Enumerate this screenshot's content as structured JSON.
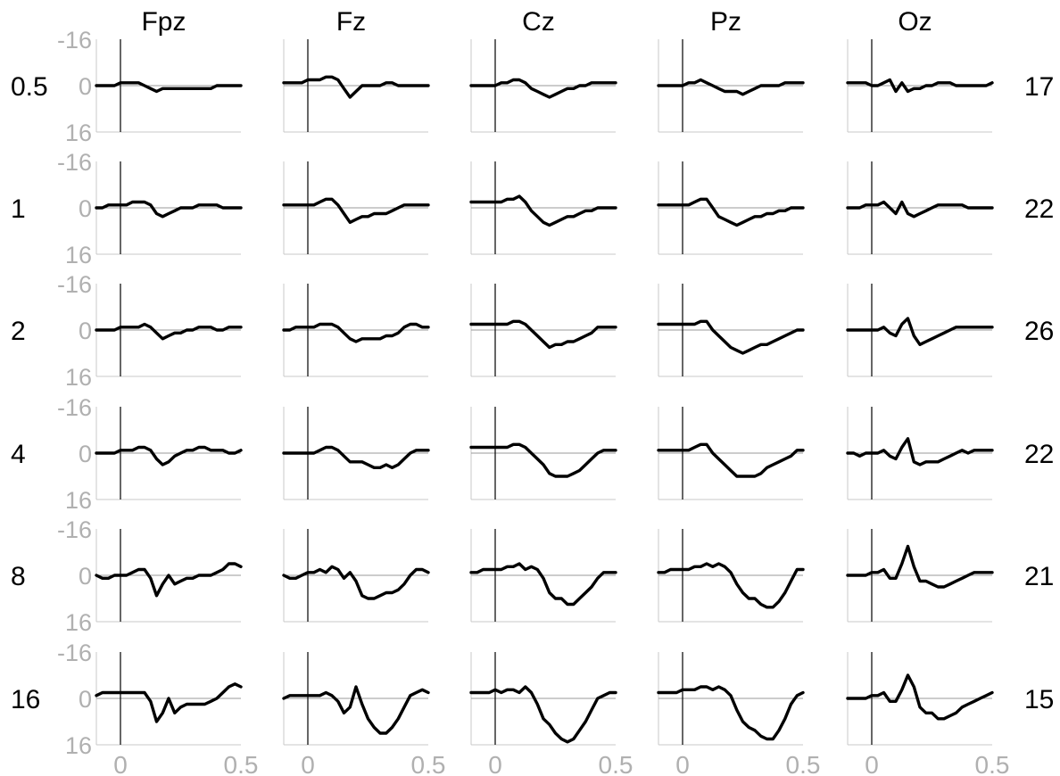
{
  "chart_data": {
    "type": "line",
    "columns": [
      "Fpz",
      "Fz",
      "Cz",
      "Pz",
      "Oz"
    ],
    "rows": [
      "0.5",
      "1",
      "2",
      "4",
      "8",
      "16"
    ],
    "right_labels": [
      "17",
      "22",
      "26",
      "22",
      "21",
      "15"
    ],
    "y_ticks": [
      "-16",
      "0",
      "16"
    ],
    "x_ticks": [
      "0",
      "0.5"
    ],
    "ylim": [
      -16,
      16
    ],
    "y_inverted": true,
    "xlim": [
      -0.1,
      0.5
    ],
    "x": [
      -0.1,
      -0.075,
      -0.05,
      -0.025,
      0,
      0.025,
      0.05,
      0.075,
      0.1,
      0.125,
      0.15,
      0.175,
      0.2,
      0.225,
      0.25,
      0.275,
      0.3,
      0.325,
      0.35,
      0.375,
      0.4,
      0.425,
      0.45,
      0.475,
      0.5
    ],
    "trace_color": "#000000",
    "panels": [
      [
        [
          0,
          0,
          0,
          0,
          -1,
          -1,
          -1,
          -1,
          0,
          1,
          2,
          1,
          1,
          1,
          1,
          1,
          1,
          1,
          1,
          1,
          0,
          0,
          0,
          0,
          0
        ],
        [
          0,
          0,
          -1,
          -1,
          -1,
          -1,
          -2,
          -2,
          -2,
          -1,
          2,
          3,
          2,
          1,
          0,
          0,
          0,
          -1,
          -1,
          -1,
          -1,
          0,
          0,
          0,
          0
        ],
        [
          0,
          0,
          0,
          0,
          -1,
          -1,
          -1,
          -1,
          -2,
          -1,
          1,
          3,
          2,
          1,
          1,
          0,
          0,
          -1,
          -1,
          -1,
          0,
          0,
          -1,
          -1,
          -1
        ],
        [
          0,
          0,
          0,
          0,
          -1,
          -1,
          -1,
          -2,
          -2,
          -1,
          2,
          4,
          3,
          1,
          0,
          -1,
          -1,
          -2,
          -2,
          -1,
          -1,
          -1,
          0,
          0,
          -1
        ],
        [
          0,
          1,
          1,
          0,
          0,
          0,
          -1,
          -2,
          -2,
          1,
          7,
          3,
          0,
          3,
          2,
          1,
          1,
          0,
          0,
          0,
          -1,
          -2,
          -4,
          -4,
          -3
        ],
        [
          -1,
          -2,
          -2,
          -2,
          -2,
          -2,
          -2,
          -2,
          -2,
          1,
          8,
          5,
          0,
          5,
          3,
          2,
          2,
          2,
          2,
          1,
          0,
          -2,
          -4,
          -5,
          -4
        ]
      ],
      [
        [
          -1,
          -1,
          -1,
          -1,
          -2,
          -2,
          -2,
          -3,
          -3,
          -2,
          1,
          4,
          2,
          0,
          0,
          0,
          0,
          -1,
          -1,
          0,
          0,
          0,
          0,
          0,
          0
        ],
        [
          -1,
          -1,
          -1,
          -1,
          -1,
          -1,
          -2,
          -3,
          -3,
          -1,
          2,
          5,
          4,
          3,
          3,
          2,
          2,
          2,
          1,
          0,
          -1,
          -1,
          -1,
          -1,
          -1
        ],
        [
          0,
          0,
          -1,
          -1,
          -1,
          -1,
          -2,
          -2,
          -2,
          -1,
          1,
          3,
          4,
          3,
          3,
          3,
          3,
          2,
          2,
          1,
          -1,
          -2,
          -2,
          -1,
          -1
        ],
        [
          0,
          0,
          0,
          0,
          0,
          0,
          -1,
          -2,
          -2,
          -1,
          1,
          3,
          3,
          3,
          4,
          5,
          5,
          4,
          5,
          4,
          2,
          0,
          -1,
          -1,
          -1
        ],
        [
          0,
          1,
          1,
          0,
          -1,
          -1,
          -2,
          -1,
          -3,
          -2,
          1,
          -1,
          2,
          7,
          8,
          8,
          7,
          6,
          6,
          5,
          3,
          0,
          -2,
          -2,
          -1
        ],
        [
          0,
          -1,
          -1,
          -1,
          -1,
          -1,
          -1,
          -2,
          -1,
          1,
          5,
          3,
          -4,
          2,
          7,
          10,
          12,
          12,
          10,
          7,
          3,
          -1,
          -2,
          -3,
          -2
        ]
      ],
      [
        [
          0,
          0,
          0,
          0,
          0,
          -1,
          -1,
          -2,
          -2,
          -1,
          1,
          2,
          3,
          4,
          3,
          2,
          1,
          1,
          0,
          0,
          -1,
          -1,
          -1,
          -1,
          -1
        ],
        [
          -2,
          -2,
          -2,
          -2,
          -2,
          -2,
          -3,
          -3,
          -4,
          -2,
          1,
          3,
          5,
          6,
          5,
          4,
          3,
          3,
          2,
          1,
          1,
          0,
          0,
          0,
          0
        ],
        [
          -2,
          -2,
          -2,
          -2,
          -2,
          -2,
          -2,
          -3,
          -3,
          -2,
          0,
          2,
          4,
          6,
          5,
          5,
          4,
          4,
          3,
          2,
          1,
          -1,
          -1,
          -1,
          -1
        ],
        [
          -2,
          -2,
          -2,
          -2,
          -2,
          -2,
          -2,
          -3,
          -3,
          -2,
          0,
          2,
          4,
          7,
          8,
          8,
          8,
          7,
          6,
          4,
          2,
          0,
          -1,
          -1,
          -1
        ],
        [
          -1,
          -1,
          -2,
          -2,
          -2,
          -2,
          -3,
          -3,
          -4,
          -2,
          -3,
          -2,
          1,
          6,
          8,
          8,
          10,
          10,
          8,
          6,
          4,
          1,
          -1,
          -1,
          -1
        ],
        [
          -2,
          -2,
          -2,
          -2,
          -3,
          -2,
          -3,
          -3,
          -2,
          -4,
          -2,
          2,
          7,
          9,
          12,
          14,
          15,
          14,
          11,
          8,
          4,
          0,
          -1,
          -2,
          -2
        ]
      ],
      [
        [
          0,
          0,
          0,
          0,
          0,
          -1,
          -1,
          -2,
          -1,
          0,
          1,
          2,
          2,
          2,
          3,
          2,
          1,
          0,
          0,
          0,
          0,
          -1,
          -1,
          -1,
          -1
        ],
        [
          -1,
          -1,
          -1,
          -1,
          -1,
          -1,
          -2,
          -3,
          -3,
          0,
          3,
          4,
          5,
          6,
          5,
          4,
          3,
          3,
          2,
          2,
          1,
          1,
          0,
          0,
          0
        ],
        [
          -2,
          -2,
          -2,
          -2,
          -2,
          -2,
          -2,
          -3,
          -3,
          0,
          2,
          4,
          6,
          7,
          8,
          7,
          6,
          5,
          5,
          4,
          3,
          2,
          1,
          0,
          0
        ],
        [
          -1,
          -1,
          -1,
          -1,
          -1,
          -1,
          -2,
          -3,
          -3,
          0,
          2,
          4,
          6,
          8,
          8,
          8,
          8,
          7,
          5,
          4,
          3,
          2,
          1,
          -1,
          -1
        ],
        [
          -1,
          -1,
          -2,
          -2,
          -2,
          -2,
          -3,
          -3,
          -4,
          -3,
          -4,
          -3,
          -1,
          3,
          6,
          8,
          8,
          10,
          11,
          11,
          9,
          6,
          2,
          -2,
          -2
        ],
        [
          -2,
          -2,
          -2,
          -2,
          -3,
          -3,
          -3,
          -4,
          -4,
          -3,
          -4,
          -3,
          -1,
          4,
          8,
          10,
          11,
          13,
          14,
          14,
          11,
          7,
          2,
          -1,
          -2
        ]
      ],
      [
        [
          -1,
          -1,
          -1,
          -1,
          0,
          0,
          -1,
          -2,
          2,
          -1,
          2,
          1,
          1,
          0,
          0,
          -1,
          -1,
          -1,
          0,
          0,
          0,
          0,
          0,
          0,
          -1
        ],
        [
          0,
          0,
          0,
          -1,
          -1,
          -1,
          -2,
          0,
          2,
          -2,
          2,
          3,
          2,
          1,
          0,
          -1,
          -1,
          -1,
          -1,
          -1,
          0,
          0,
          0,
          0,
          0
        ],
        [
          0,
          0,
          0,
          0,
          0,
          0,
          -1,
          1,
          2,
          -2,
          -4,
          2,
          5,
          4,
          3,
          2,
          1,
          0,
          -1,
          -1,
          -1,
          -1,
          -1,
          -1,
          -1
        ],
        [
          0,
          0,
          1,
          0,
          0,
          0,
          -1,
          1,
          2,
          -2,
          -5,
          3,
          4,
          3,
          3,
          3,
          2,
          1,
          0,
          -1,
          0,
          -1,
          -1,
          -1,
          -1
        ],
        [
          0,
          0,
          0,
          0,
          -1,
          -1,
          -2,
          1,
          1,
          -4,
          -10,
          -3,
          2,
          2,
          3,
          4,
          4,
          3,
          2,
          1,
          0,
          -1,
          -1,
          -1,
          -1
        ],
        [
          0,
          0,
          0,
          0,
          -1,
          -1,
          -2,
          1,
          1,
          -3,
          -8,
          -4,
          3,
          5,
          5,
          7,
          7,
          6,
          5,
          3,
          2,
          1,
          0,
          -1,
          -2
        ]
      ]
    ]
  }
}
